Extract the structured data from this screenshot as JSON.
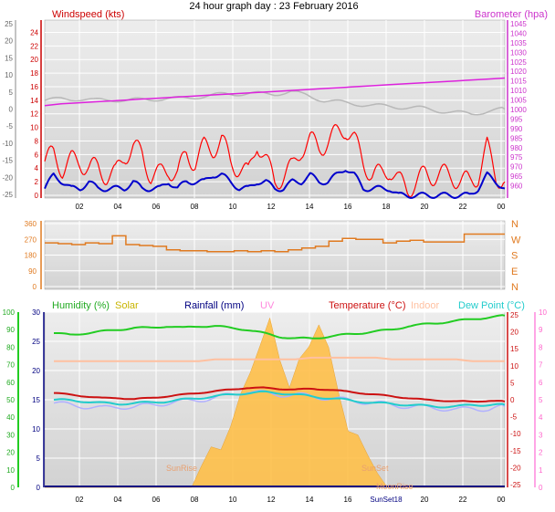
{
  "title": "24 hour graph day : 23 February 2016",
  "colors": {
    "wind_gust": "#ff0000",
    "wind_avg": "#0000cc",
    "temp_axis": "#d00000",
    "baro_axis": "#dd33dd",
    "direction": "#e07a20",
    "humidity": "#22cc22",
    "solar_axis": "#c8b400",
    "rain": "#000080",
    "uv": "#ff88dd",
    "temperature": "#cc1111",
    "indoor": "#ffc0a0",
    "dewpoint": "#22cccc",
    "apparent": "#b0b0ff",
    "solar_fill": "#ffc04a",
    "grid": "#ffffff",
    "panel_bg_top": "#ececec",
    "panel_bg_bottom": "#d4d4d4"
  },
  "chart_data": [
    {
      "type": "line",
      "name": "wind_baro",
      "left_label": "Windspeed (kts)",
      "right_label": "Barometer (hpa)",
      "x_ticks": [
        "02",
        "04",
        "06",
        "08",
        "10",
        "12",
        "14",
        "16",
        "18",
        "20",
        "22",
        "00"
      ],
      "x_range_hours": [
        0,
        24
      ],
      "outer_left_ticks": [
        25,
        20,
        15,
        10,
        5,
        0,
        -5,
        -10,
        -15,
        -20,
        -25
      ],
      "wind_ticks": [
        24,
        22,
        20,
        18,
        16,
        14,
        12,
        10,
        8,
        6,
        4,
        2,
        0
      ],
      "baro_ticks": [
        1045,
        1040,
        1035,
        1030,
        1025,
        1020,
        1015,
        1010,
        1005,
        1000,
        995,
        990,
        985,
        980,
        975,
        970,
        965,
        960
      ],
      "wind_ylim": [
        0,
        25
      ],
      "baro_ylim": [
        955,
        1045
      ],
      "outer_ylim": [
        -25,
        25
      ],
      "series": [
        {
          "key": "temp_grey",
          "values": [
            2.5,
            3.0,
            3.0,
            2.5,
            2.8,
            2.5,
            2.8,
            3.0,
            3.0,
            3.5,
            3.8,
            4.5,
            4.5,
            4.5,
            4.5,
            5.0,
            4.0,
            2.5,
            2.0,
            1.5,
            1.0,
            0.8,
            0.5,
            0.2,
            -0.5,
            -1.0,
            -1.5,
            -0.5,
            0.0
          ]
        },
        {
          "key": "barometer",
          "values": [
            1002,
            1003,
            1003.5,
            1004,
            1004.5,
            1005,
            1005.5,
            1006,
            1006.5,
            1007,
            1007.5,
            1008,
            1008.5,
            1009,
            1009.5,
            1010,
            1010.5,
            1011,
            1011.5,
            1012,
            1012.5,
            1013,
            1013.5,
            1014,
            1014.5,
            1015,
            1015.5,
            1016,
            1016.5
          ]
        },
        {
          "key": "wind_gust",
          "values": [
            5,
            6,
            4,
            5,
            5,
            4,
            4,
            3,
            3,
            6,
            7,
            6,
            3,
            3,
            4,
            3,
            6,
            5,
            7,
            7,
            8,
            5,
            4,
            3,
            8,
            5,
            2,
            3,
            4,
            7,
            8,
            7,
            8,
            9,
            10,
            8,
            5,
            3,
            3,
            4,
            2,
            1,
            2,
            3,
            3,
            3,
            3,
            2,
            2,
            3,
            7,
            3,
            2
          ]
        },
        {
          "key": "wind_avg",
          "values": [
            1,
            3,
            2,
            1,
            1,
            2,
            1,
            1,
            1,
            1,
            2,
            1,
            1,
            1,
            2,
            1,
            2,
            2,
            2,
            3,
            3,
            2,
            1,
            1,
            2,
            2,
            1,
            1,
            2,
            2,
            3,
            2,
            2,
            3,
            4,
            3,
            1,
            1,
            1,
            1,
            0,
            0,
            0,
            0,
            0,
            0,
            0,
            0,
            0,
            1,
            3,
            2,
            1
          ]
        }
      ]
    },
    {
      "type": "line",
      "name": "wind_direction",
      "left_ticks": [
        360,
        270,
        180,
        90,
        0
      ],
      "right_ticks": [
        "N",
        "W",
        "S",
        "E",
        "N"
      ],
      "ylim": [
        0,
        360
      ],
      "series": [
        {
          "key": "direction",
          "values": [
            250,
            245,
            240,
            250,
            245,
            290,
            240,
            235,
            230,
            210,
            205,
            205,
            200,
            200,
            205,
            200,
            205,
            200,
            210,
            220,
            230,
            260,
            275,
            270,
            270,
            250,
            260,
            265,
            255,
            255,
            255,
            300,
            300,
            300
          ]
        }
      ]
    },
    {
      "type": "line",
      "name": "climate",
      "header_labels": [
        "Humidity (%)",
        "Solar",
        "Rainfall (mm)",
        "UV",
        "Temperature (°C)",
        "Indoor",
        "Dew Point (°C)"
      ],
      "footer_labels": [
        "SunRise",
        "SunSet",
        "MoonRise"
      ],
      "inline_x_label": "SunSet18",
      "humidity_ticks": [
        100,
        90,
        80,
        70,
        60,
        50,
        40,
        30,
        20,
        10,
        0
      ],
      "rain_ticks": [
        30,
        25,
        20,
        15,
        10,
        5,
        0
      ],
      "temp_ticks": [
        25,
        20,
        15,
        10,
        5,
        0,
        -5,
        -10,
        -15,
        -20,
        -25
      ],
      "uv_ticks": [
        10,
        9,
        8,
        7,
        6,
        5,
        4,
        3,
        2,
        1,
        0
      ],
      "humidity_ylim": [
        0,
        100
      ],
      "temp_ylim": [
        -25,
        25
      ],
      "series": [
        {
          "key": "humidity",
          "values": [
            88,
            87,
            88,
            89,
            90,
            91,
            91,
            92,
            91,
            92,
            92,
            91,
            90,
            88,
            86,
            85,
            85,
            86,
            87,
            88,
            89,
            90,
            92,
            93,
            94,
            95,
            96,
            97,
            98
          ]
        },
        {
          "key": "indoor",
          "values": [
            72,
            72,
            72,
            72,
            72,
            72,
            72,
            72,
            72,
            72,
            73,
            73,
            73,
            73,
            73,
            73,
            74,
            74,
            74,
            74,
            74,
            73,
            73,
            73,
            73,
            73,
            72,
            72,
            72
          ]
        },
        {
          "key": "temperature",
          "values": [
            2,
            1.5,
            1,
            0.5,
            0.5,
            0.2,
            0.5,
            1,
            1.5,
            2,
            2.5,
            3,
            3.5,
            3.5,
            3.2,
            3,
            3.2,
            3,
            2.5,
            2,
            1.5,
            1,
            0.5,
            0,
            -0.2,
            -0.5,
            -0.5,
            -0.3,
            -0.5
          ]
        },
        {
          "key": "dewpoint",
          "values": [
            0,
            -0.2,
            -0.5,
            -1,
            -1.2,
            -1,
            -0.8,
            -0.5,
            0,
            0.5,
            1,
            1.5,
            2,
            2.2,
            2,
            1.5,
            1,
            0.5,
            0,
            -0.5,
            -1,
            -1.2,
            -1.5,
            -1.8,
            -2,
            -2,
            -1.5,
            -1.5,
            -1.5
          ]
        },
        {
          "key": "apparent",
          "values": [
            -1,
            -1.5,
            -2,
            -2.5,
            -2,
            -2.2,
            -1.5,
            -1,
            -0.5,
            0,
            0.5,
            1.5,
            2.5,
            2,
            1.5,
            1.5,
            1,
            0.5,
            0,
            -0.5,
            -1,
            -1.5,
            -2,
            -2.2,
            -2.5,
            -3,
            -2.5,
            -2.8,
            -2
          ]
        },
        {
          "key": "solar",
          "values": [
            0,
            0,
            0,
            0,
            0,
            0,
            0,
            0,
            0,
            0,
            0,
            0,
            0,
            0,
            0,
            0,
            1,
            3,
            5,
            8,
            12,
            18,
            22,
            25,
            20,
            15,
            18,
            22,
            26,
            20,
            14,
            8,
            5,
            3,
            1,
            0,
            0,
            0,
            0,
            0,
            0,
            0,
            0,
            0,
            0,
            0,
            0,
            0
          ]
        }
      ]
    }
  ]
}
